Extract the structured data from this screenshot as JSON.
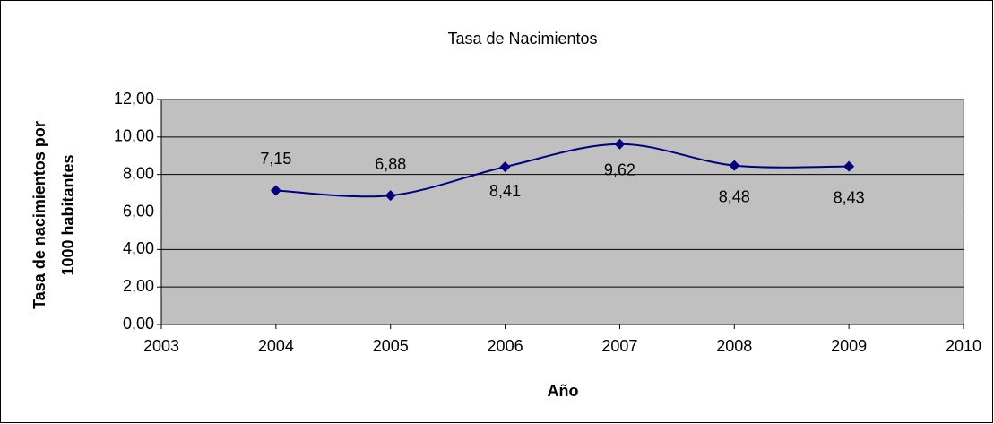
{
  "chart_data": {
    "type": "line",
    "title": "Tasa de Nacimientos",
    "xlabel": "Año",
    "ylabel": [
      "Tasa de nacimientos por",
      "1000 habitantes"
    ],
    "x": [
      2004,
      2005,
      2006,
      2007,
      2008,
      2009
    ],
    "series": [
      {
        "color": "#000080",
        "values": [
          7.15,
          6.88,
          8.41,
          9.62,
          8.48,
          8.43
        ],
        "value_labels": [
          "7,15",
          "6,88",
          "8,41",
          "9,62",
          "8,48",
          "8,43"
        ]
      }
    ],
    "xlim": [
      2003,
      2010
    ],
    "xticks": [
      2003,
      2004,
      2005,
      2006,
      2007,
      2008,
      2009,
      2010
    ],
    "ylim": [
      0,
      12
    ],
    "yticks": [
      {
        "value": 0,
        "label": "0,00"
      },
      {
        "value": 2,
        "label": "2,00"
      },
      {
        "value": 4,
        "label": "4,00"
      },
      {
        "value": 6,
        "label": "6,00"
      },
      {
        "value": 8,
        "label": "8,00"
      },
      {
        "value": 10,
        "label": "10,00"
      },
      {
        "value": 12,
        "label": "12,00"
      }
    ],
    "grid": true,
    "smooth": true,
    "plot_background": "#c0c0c0"
  }
}
